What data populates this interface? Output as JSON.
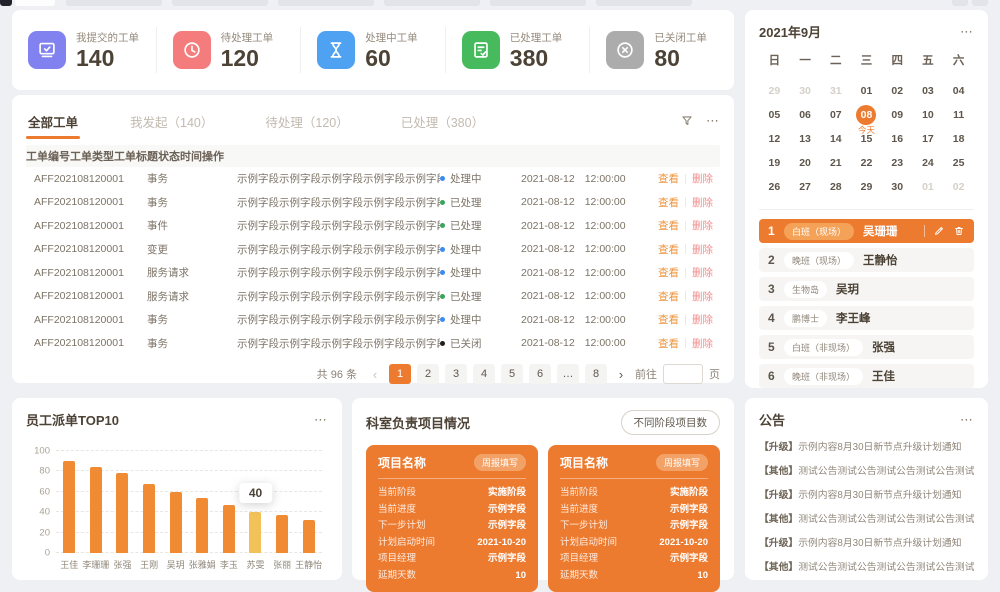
{
  "icons": {
    "more": "⋯",
    "prev": "‹",
    "next": "›"
  },
  "theme": {
    "primary": "#ED7B2F",
    "status_colors": {
      "processing": "#3C8BF0",
      "done": "#3BA35D",
      "closed": "#1f1f1f"
    }
  },
  "stats": [
    {
      "label": "我提交的工单",
      "value": "140",
      "icon": "laptop-check-icon",
      "icon_bg": "#8181EF"
    },
    {
      "label": "待处理工单",
      "value": "120",
      "icon": "clock-icon",
      "icon_bg": "#F47C7C"
    },
    {
      "label": "处理中工单",
      "value": "60",
      "icon": "hourglass-icon",
      "icon_bg": "#4FA1F2"
    },
    {
      "label": "已处理工单",
      "value": "380",
      "icon": "doc-check-icon",
      "icon_bg": "#47BA5E"
    },
    {
      "label": "已关闭工单",
      "value": "80",
      "icon": "circle-close-icon",
      "icon_bg": "#ACACAC"
    }
  ],
  "workorders": {
    "tabs": [
      {
        "label": "全部工单",
        "active": true
      },
      {
        "label": "我发起（140）",
        "active": false
      },
      {
        "label": "待处理（120）",
        "active": false
      },
      {
        "label": "已处理（380）",
        "active": false
      }
    ],
    "columns": [
      "工单编号",
      "工单类型",
      "工单标题",
      "状态",
      "时间",
      "操作"
    ],
    "view_label": "查看",
    "delete_label": "删除",
    "rows": [
      {
        "id": "AFF202108120001",
        "type": "事务",
        "title": "示例字段示例字段示例字段示例字段示例字段",
        "status": "处理中",
        "state": "processing",
        "date": "2021-08-12",
        "time": "12:00:00"
      },
      {
        "id": "AFF202108120001",
        "type": "事务",
        "title": "示例字段示例字段示例字段示例字段示例字段",
        "status": "已处理",
        "state": "done",
        "date": "2021-08-12",
        "time": "12:00:00"
      },
      {
        "id": "AFF202108120001",
        "type": "事件",
        "title": "示例字段示例字段示例字段示例字段示例字段",
        "status": "已处理",
        "state": "done",
        "date": "2021-08-12",
        "time": "12:00:00"
      },
      {
        "id": "AFF202108120001",
        "type": "变更",
        "title": "示例字段示例字段示例字段示例字段示例字段",
        "status": "处理中",
        "state": "processing",
        "date": "2021-08-12",
        "time": "12:00:00"
      },
      {
        "id": "AFF202108120001",
        "type": "服务请求",
        "title": "示例字段示例字段示例字段示例字段示例字段",
        "status": "处理中",
        "state": "processing",
        "date": "2021-08-12",
        "time": "12:00:00"
      },
      {
        "id": "AFF202108120001",
        "type": "服务请求",
        "title": "示例字段示例字段示例字段示例字段示例字段",
        "status": "已处理",
        "state": "done",
        "date": "2021-08-12",
        "time": "12:00:00"
      },
      {
        "id": "AFF202108120001",
        "type": "事务",
        "title": "示例字段示例字段示例字段示例字段示例字段",
        "status": "处理中",
        "state": "processing",
        "date": "2021-08-12",
        "time": "12:00:00"
      },
      {
        "id": "AFF202108120001",
        "type": "事务",
        "title": "示例字段示例字段示例字段示例字段示例字段",
        "status": "已关闭",
        "state": "closed",
        "date": "2021-08-12",
        "time": "12:00:00"
      }
    ],
    "pagination": {
      "total": "共 96 条",
      "pages": [
        {
          "label": "1",
          "active": true
        },
        {
          "label": "2",
          "active": false
        },
        {
          "label": "3",
          "active": false
        },
        {
          "label": "4",
          "active": false
        },
        {
          "label": "5",
          "active": false
        },
        {
          "label": "6",
          "active": false
        },
        {
          "label": "…",
          "active": false
        },
        {
          "label": "8",
          "active": false
        }
      ],
      "goto_label": "前往",
      "page_unit": "页"
    }
  },
  "calendar": {
    "title": "2021年9月",
    "weekdays": [
      "日",
      "一",
      "二",
      "三",
      "四",
      "五",
      "六"
    ],
    "cells": [
      {
        "d": "29",
        "muted": true
      },
      {
        "d": "30",
        "muted": true
      },
      {
        "d": "31",
        "muted": true
      },
      {
        "d": "01"
      },
      {
        "d": "02"
      },
      {
        "d": "03"
      },
      {
        "d": "04"
      },
      {
        "d": "05"
      },
      {
        "d": "06"
      },
      {
        "d": "07"
      },
      {
        "d": "08",
        "today": true,
        "sub": "今天"
      },
      {
        "d": "09"
      },
      {
        "d": "10"
      },
      {
        "d": "11"
      },
      {
        "d": "12"
      },
      {
        "d": "13"
      },
      {
        "d": "14"
      },
      {
        "d": "15"
      },
      {
        "d": "16"
      },
      {
        "d": "17"
      },
      {
        "d": "18"
      },
      {
        "d": "19"
      },
      {
        "d": "20"
      },
      {
        "d": "21"
      },
      {
        "d": "22"
      },
      {
        "d": "23"
      },
      {
        "d": "24"
      },
      {
        "d": "25"
      },
      {
        "d": "26"
      },
      {
        "d": "27"
      },
      {
        "d": "28"
      },
      {
        "d": "29"
      },
      {
        "d": "30"
      },
      {
        "d": "01",
        "muted": true
      },
      {
        "d": "02",
        "muted": true
      }
    ]
  },
  "roster": [
    {
      "no": "1",
      "tag": "白班（现场）",
      "name": "吴珊珊",
      "active": true
    },
    {
      "no": "2",
      "tag": "晚班（现场）",
      "name": "王静怡",
      "active": false
    },
    {
      "no": "3",
      "tag": "生物岛",
      "name": "吴玥",
      "active": false
    },
    {
      "no": "4",
      "tag": "鹏博士",
      "name": "李王峰",
      "active": false
    },
    {
      "no": "5",
      "tag": "白班（非现场）",
      "name": "张强",
      "active": false
    },
    {
      "no": "6",
      "tag": "晚班（非现场）",
      "name": "王佳",
      "active": false
    }
  ],
  "chart_data": {
    "type": "bar",
    "title": "员工派单TOP10",
    "categories": [
      "王佳",
      "李珊珊",
      "张强",
      "王刚",
      "吴玥",
      "张雅娟",
      "李玉",
      "苏雯",
      "张丽",
      "王静怡"
    ],
    "values": [
      90,
      84,
      78,
      68,
      60,
      54,
      47,
      40,
      37,
      32
    ],
    "ylim": [
      0,
      100
    ],
    "yticks": [
      0,
      20,
      40,
      60,
      80,
      100
    ],
    "grid": true,
    "legend": false,
    "highlight_index": 7,
    "tooltip": {
      "index": 7,
      "label": "40"
    },
    "bar_color": "#F08B33",
    "highlight_color": "#F3C159"
  },
  "projects": {
    "title": "科室负责项目情况",
    "filter_button": "不同阶段项目数",
    "cards": [
      {
        "name": "项目名称",
        "badge": "周报填写",
        "fields": [
          {
            "label": "当前阶段",
            "value": "实施阶段"
          },
          {
            "label": "当前进度",
            "value": "示例字段"
          },
          {
            "label": "下一步计划",
            "value": "示例字段"
          },
          {
            "label": "计划启动时间",
            "value": "2021-10-20"
          },
          {
            "label": "项目经理",
            "value": "示例字段"
          },
          {
            "label": "延期天数",
            "value": "10"
          }
        ]
      },
      {
        "name": "项目名称",
        "badge": "周报填写",
        "fields": [
          {
            "label": "当前阶段",
            "value": "实施阶段"
          },
          {
            "label": "当前进度",
            "value": "示例字段"
          },
          {
            "label": "下一步计划",
            "value": "示例字段"
          },
          {
            "label": "计划启动时间",
            "value": "2021-10-20"
          },
          {
            "label": "项目经理",
            "value": "示例字段"
          },
          {
            "label": "延期天数",
            "value": "10"
          }
        ]
      }
    ]
  },
  "announcements": {
    "title": "公告",
    "items": [
      {
        "tag": "【升级】",
        "text": "示例内容8月30日新节点升级计划通知"
      },
      {
        "tag": "【其他】",
        "text": "测试公告测试公告测试公告测试公告测试公告"
      },
      {
        "tag": "【升级】",
        "text": "示例内容8月30日新节点升级计划通知"
      },
      {
        "tag": "【其他】",
        "text": "测试公告测试公告测试公告测试公告测试公告"
      },
      {
        "tag": "【升级】",
        "text": "示例内容8月30日新节点升级计划通知"
      },
      {
        "tag": "【其他】",
        "text": "测试公告测试公告测试公告测试公告测试公告"
      }
    ]
  }
}
